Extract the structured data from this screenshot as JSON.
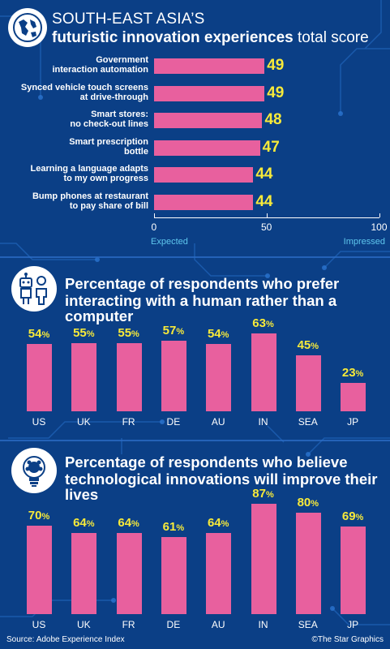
{
  "header": {
    "line1": "SOUTH-EAST ASIA’S",
    "line2_bold": "futuristic innovation experiences",
    "line2_rest": " total score"
  },
  "section2_title": [
    "Percentage of respondents who prefer",
    "interacting with a human rather than a computer"
  ],
  "section3_title": [
    "Percentage of respondents who believe",
    "technological innovations will improve their lives"
  ],
  "footer": {
    "source": "Source: Adobe Experience Index",
    "credit": "©The Star Graphics"
  },
  "colors": {
    "background": "#0b3f86",
    "bar": "#e8609e",
    "value": "#f7ea3a",
    "axis_end_label": "#5fc7ee"
  },
  "icons": [
    "globe-map-icon",
    "robot-person-icon",
    "lightbulb-icon"
  ],
  "chart_data": [
    {
      "type": "bar",
      "orientation": "horizontal",
      "categories": [
        "Government interaction automation",
        "Synced vehicle touch screens at drive-through",
        "Smart stores: no check-out lines",
        "Smart prescription bottle",
        "Learning a language adapts to my own progress",
        "Bump phones at restaurant to pay share of bill"
      ],
      "category_lines": [
        [
          "Government",
          "interaction automation"
        ],
        [
          "Synced vehicle touch screens",
          "at drive-through"
        ],
        [
          "Smart stores:",
          "no check-out lines"
        ],
        [
          "Smart prescription",
          "bottle"
        ],
        [
          "Learning a language adapts",
          "to my own progress"
        ],
        [
          "Bump phones at restaurant",
          "to pay share of bill"
        ]
      ],
      "values": [
        49,
        49,
        48,
        47,
        44,
        44
      ],
      "xlim": [
        0,
        100
      ],
      "ticks": [
        "0",
        "50",
        "100"
      ],
      "axis_end_labels": [
        "Expected",
        "Impressed"
      ],
      "grid": false
    },
    {
      "type": "bar",
      "orientation": "vertical",
      "categories": [
        "US",
        "UK",
        "FR",
        "DE",
        "AU",
        "IN",
        "SEA",
        "JP"
      ],
      "values": [
        54,
        55,
        55,
        57,
        54,
        63,
        45,
        23
      ],
      "unit": "%",
      "ylim": [
        0,
        100
      ],
      "grid": false
    },
    {
      "type": "bar",
      "orientation": "vertical",
      "categories": [
        "US",
        "UK",
        "FR",
        "DE",
        "AU",
        "IN",
        "SEA",
        "JP"
      ],
      "values": [
        70,
        64,
        64,
        61,
        64,
        87,
        80,
        69
      ],
      "unit": "%",
      "ylim": [
        0,
        100
      ],
      "grid": false
    }
  ]
}
